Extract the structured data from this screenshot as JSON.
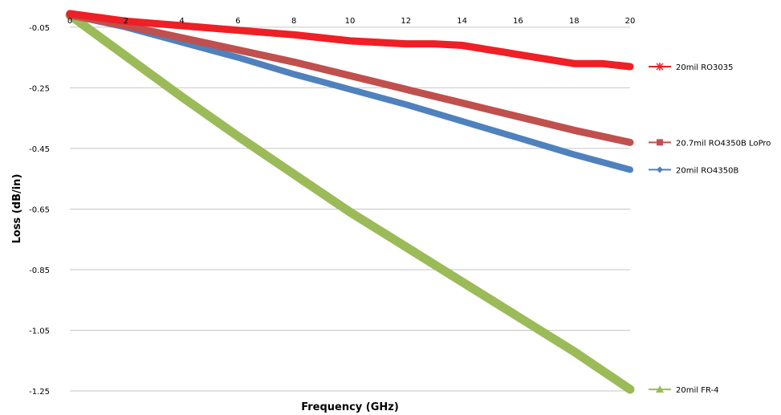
{
  "chart_data": {
    "type": "line",
    "xlabel": "Frequency (GHz)",
    "ylabel": "Loss (dB/in)",
    "xlim": [
      0,
      20
    ],
    "ylim": [
      -1.25,
      0
    ],
    "x_ticks": [
      "0",
      "2",
      "4",
      "6",
      "8",
      "10",
      "12",
      "14",
      "16",
      "18",
      "20"
    ],
    "y_ticks": [
      "-0.05",
      "-0.25",
      "-0.45",
      "-0.65",
      "-0.85",
      "-1.05",
      "-1.25"
    ],
    "grid": "horizontal",
    "legend_position": "right",
    "series": [
      {
        "name": "20mil RO3035",
        "color": "#ee1f25",
        "marker": "star",
        "x": [
          0,
          2,
          4,
          6,
          8,
          10,
          12,
          13,
          14,
          15,
          16,
          18,
          19,
          20
        ],
        "y": [
          -0.005,
          -0.03,
          -0.045,
          -0.06,
          -0.075,
          -0.095,
          -0.105,
          -0.105,
          -0.11,
          -0.125,
          -0.14,
          -0.17,
          -0.17,
          -0.18
        ]
      },
      {
        "name": "20.7mil RO4350B LoPro",
        "color": "#c0504d",
        "marker": "square",
        "x": [
          0,
          2,
          4,
          6,
          8,
          10,
          12,
          14,
          16,
          18,
          20
        ],
        "y": [
          -0.01,
          -0.045,
          -0.085,
          -0.125,
          -0.165,
          -0.21,
          -0.255,
          -0.3,
          -0.345,
          -0.39,
          -0.43
        ]
      },
      {
        "name": "20mil RO4350B",
        "color": "#4f81bd",
        "marker": "diamond",
        "x": [
          0,
          2,
          4,
          6,
          8,
          10,
          12,
          14,
          16,
          18,
          20
        ],
        "y": [
          -0.01,
          -0.05,
          -0.1,
          -0.15,
          -0.205,
          -0.255,
          -0.305,
          -0.36,
          -0.415,
          -0.47,
          -0.52
        ]
      },
      {
        "name": "20mil FR-4",
        "color": "#9bbb59",
        "marker": "triangle",
        "x": [
          0,
          2,
          4,
          6,
          8,
          10,
          12,
          14,
          16,
          18,
          20
        ],
        "y": [
          -0.01,
          -0.145,
          -0.28,
          -0.41,
          -0.535,
          -0.66,
          -0.775,
          -0.89,
          -1.005,
          -1.12,
          -1.245
        ]
      }
    ]
  }
}
